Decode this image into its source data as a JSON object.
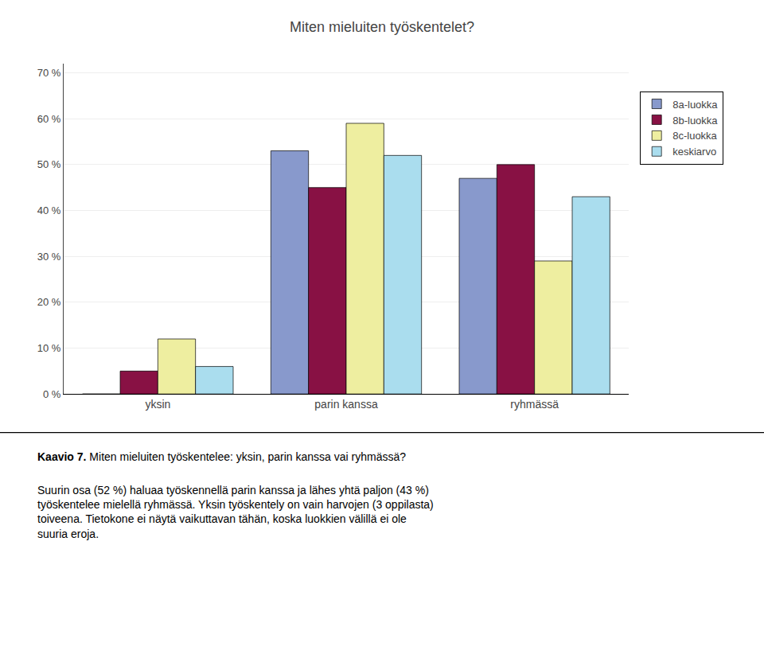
{
  "chart_data": {
    "type": "bar",
    "title": "Miten mieluiten työskentelet?",
    "categories": [
      "yksin",
      "parin kanssa",
      "ryhmässä"
    ],
    "series": [
      {
        "name": "8a-luokka",
        "color": "#8899CC",
        "values": [
          0,
          53,
          47
        ]
      },
      {
        "name": "8b-luokka",
        "color": "#881144",
        "values": [
          5,
          45,
          50
        ]
      },
      {
        "name": "8c-luokka",
        "color": "#EEEEA0",
        "values": [
          12,
          59,
          29
        ]
      },
      {
        "name": "keskiarvo",
        "color": "#AADDEE",
        "values": [
          6,
          52,
          43
        ]
      }
    ],
    "ylim": [
      0,
      72
    ],
    "yticks": [
      {
        "value": 0,
        "label": "0 %"
      },
      {
        "value": 10,
        "label": "10 %"
      },
      {
        "value": 20,
        "label": "20 %"
      },
      {
        "value": 30,
        "label": "30 %"
      },
      {
        "value": 40,
        "label": "40 %"
      },
      {
        "value": 50,
        "label": "50 %"
      },
      {
        "value": 60,
        "label": "60 %"
      },
      {
        "value": 70,
        "label": "70 %"
      }
    ],
    "grid": true,
    "legend": "right",
    "annotations": [
      "Kaavio 7.",
      " Miten mieluiten työskentelee: yksin, parin kanssa vai ryhmässä?",
      "Suurin osa (52 %) haluaa työskennellä parin kanssa ja lähes yhtä paljon (43 %)\ntyöskentelee mielellä ryhmässä. Yksin työskentely on vain harvojen (3 oppilasta)\ntoiveena. Tietokone ei näytä vaikuttavan tähän, koska luokkien välillä ei ole\nsuuria eroja."
    ]
  }
}
